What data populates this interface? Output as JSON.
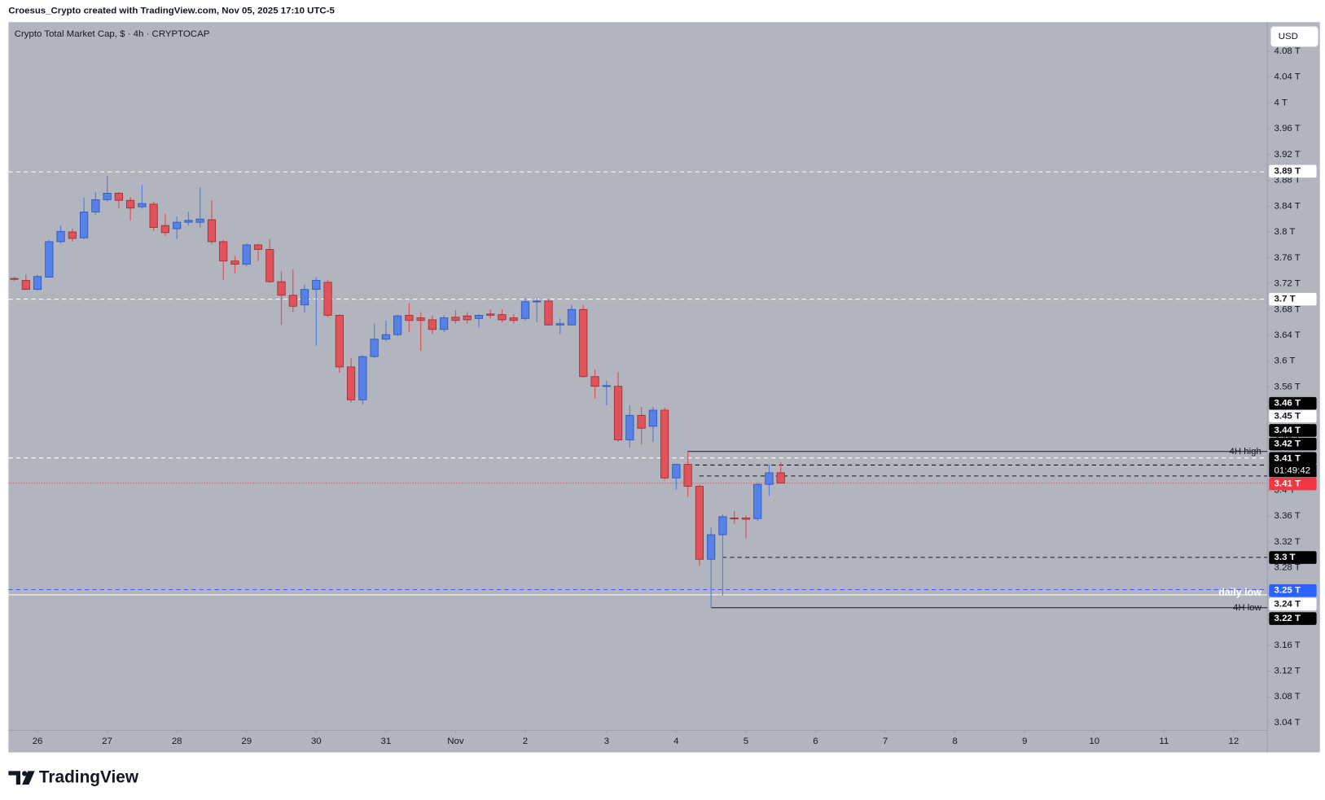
{
  "chart_data": {
    "type": "candlestick",
    "attribution": "Croesus_Crypto created with TradingView.com, Nov 05, 2025 17:10 UTC-5",
    "title": "Crypto Total Market Cap, $ · 4h · CRYPTOCAP",
    "currency": "USD",
    "brand": "TradingView",
    "up_color": "#5681e6",
    "down_color": "#e0535a",
    "grid": false,
    "open": [
      3.728,
      3.725,
      3.711,
      3.73,
      3.785,
      3.8,
      3.791,
      3.831,
      3.85,
      3.86,
      3.849,
      3.839,
      3.843,
      3.81,
      3.805,
      3.815,
      3.815,
      3.819,
      3.785,
      3.755,
      3.75,
      3.78,
      3.773,
      3.723,
      3.702,
      3.687,
      3.711,
      3.722,
      3.671,
      3.591,
      3.54,
      3.607,
      3.634,
      3.641,
      3.671,
      3.667,
      3.664,
      3.649,
      3.668,
      3.67,
      3.666,
      3.673,
      3.672,
      3.667,
      3.666,
      3.692,
      3.693,
      3.656,
      3.656,
      3.68,
      3.576,
      3.561,
      3.561,
      3.478,
      3.516,
      3.499,
      3.524,
      3.419,
      3.44,
      3.406,
      3.293,
      3.331,
      3.357,
      3.357,
      3.356,
      3.409,
      3.427
    ],
    "high": [
      3.731,
      3.734,
      3.733,
      3.788,
      3.81,
      3.805,
      3.853,
      3.862,
      3.887,
      3.862,
      3.854,
      3.873,
      3.847,
      3.828,
      3.824,
      3.831,
      3.869,
      3.849,
      3.788,
      3.763,
      3.782,
      3.782,
      3.789,
      3.739,
      3.742,
      3.718,
      3.73,
      3.726,
      3.673,
      3.605,
      3.609,
      3.658,
      3.663,
      3.672,
      3.69,
      3.676,
      3.671,
      3.671,
      3.679,
      3.676,
      3.673,
      3.68,
      3.68,
      3.673,
      3.697,
      3.697,
      3.696,
      3.666,
      3.687,
      3.687,
      3.587,
      3.57,
      3.583,
      3.532,
      3.529,
      3.529,
      3.528,
      3.441,
      3.46,
      3.409,
      3.342,
      3.363,
      3.368,
      3.361,
      3.411,
      3.44,
      3.443
    ],
    "low": [
      3.724,
      3.71,
      3.71,
      3.729,
      3.782,
      3.785,
      3.789,
      3.826,
      3.847,
      3.837,
      3.818,
      3.836,
      3.802,
      3.794,
      3.789,
      3.81,
      3.807,
      3.781,
      3.726,
      3.736,
      3.747,
      3.755,
      3.721,
      3.656,
      3.676,
      3.675,
      3.624,
      3.668,
      3.582,
      3.536,
      3.533,
      3.605,
      3.631,
      3.638,
      3.645,
      3.616,
      3.642,
      3.645,
      3.658,
      3.658,
      3.652,
      3.666,
      3.66,
      3.658,
      3.663,
      3.66,
      3.655,
      3.642,
      3.655,
      3.574,
      3.542,
      3.532,
      3.475,
      3.466,
      3.471,
      3.475,
      3.416,
      3.401,
      3.39,
      3.283,
      3.218,
      3.237,
      3.348,
      3.325,
      3.352,
      3.391,
      3.411
    ],
    "close": [
      3.727,
      3.711,
      3.731,
      3.785,
      3.801,
      3.79,
      3.831,
      3.85,
      3.86,
      3.849,
      3.837,
      3.844,
      3.807,
      3.799,
      3.815,
      3.818,
      3.82,
      3.785,
      3.755,
      3.75,
      3.78,
      3.773,
      3.723,
      3.702,
      3.685,
      3.711,
      3.725,
      3.671,
      3.591,
      3.54,
      3.607,
      3.634,
      3.641,
      3.67,
      3.663,
      3.663,
      3.649,
      3.667,
      3.663,
      3.664,
      3.671,
      3.671,
      3.664,
      3.663,
      3.692,
      3.693,
      3.656,
      3.658,
      3.68,
      3.576,
      3.561,
      3.562,
      3.478,
      3.516,
      3.496,
      3.524,
      3.419,
      3.44,
      3.406,
      3.293,
      3.331,
      3.359,
      3.356,
      3.355,
      3.409,
      3.427,
      3.411
    ],
    "xlim": [
      -0.5,
      107.9
    ],
    "xticks": [
      {
        "value": 2,
        "label": "26"
      },
      {
        "value": 8,
        "label": "27"
      },
      {
        "value": 14,
        "label": "28"
      },
      {
        "value": 20,
        "label": "29"
      },
      {
        "value": 26,
        "label": "30"
      },
      {
        "value": 32,
        "label": "31"
      },
      {
        "value": 38,
        "label": "Nov"
      },
      {
        "value": 44,
        "label": "2"
      },
      {
        "value": 51,
        "label": "3"
      },
      {
        "value": 57,
        "label": "4"
      },
      {
        "value": 63,
        "label": "5"
      },
      {
        "value": 69,
        "label": "6"
      },
      {
        "value": 75,
        "label": "7"
      },
      {
        "value": 81,
        "label": "8"
      },
      {
        "value": 87,
        "label": "9"
      },
      {
        "value": 93,
        "label": "10"
      },
      {
        "value": 99,
        "label": "11"
      },
      {
        "value": 105,
        "label": "12"
      }
    ],
    "ylim": [
      3.028,
      4.125
    ],
    "yticks": [
      {
        "value": 3.04,
        "label": "3.04 T"
      },
      {
        "value": 3.08,
        "label": "3.08 T"
      },
      {
        "value": 3.12,
        "label": "3.12 T"
      },
      {
        "value": 3.16,
        "label": "3.16 T"
      },
      {
        "value": 3.2,
        "label": "3.2 T"
      },
      {
        "value": 3.24,
        "label": "3.24 T"
      },
      {
        "value": 3.28,
        "label": "3.28 T"
      },
      {
        "value": 3.32,
        "label": "3.32 T"
      },
      {
        "value": 3.36,
        "label": "3.36 T"
      },
      {
        "value": 3.4,
        "label": "3.4 T"
      },
      {
        "value": 3.44,
        "label": "3.44 T"
      },
      {
        "value": 3.48,
        "label": "3.48 T"
      },
      {
        "value": 3.52,
        "label": "3.52 T"
      },
      {
        "value": 3.56,
        "label": "3.56 T"
      },
      {
        "value": 3.6,
        "label": "3.6 T"
      },
      {
        "value": 3.64,
        "label": "3.64 T"
      },
      {
        "value": 3.68,
        "label": "3.68 T"
      },
      {
        "value": 3.72,
        "label": "3.72 T"
      },
      {
        "value": 3.76,
        "label": "3.76 T"
      },
      {
        "value": 3.8,
        "label": "3.8 T"
      },
      {
        "value": 3.84,
        "label": "3.84 T"
      },
      {
        "value": 3.88,
        "label": "3.88 T"
      },
      {
        "value": 3.92,
        "label": "3.92 T"
      },
      {
        "value": 3.96,
        "label": "3.96 T"
      },
      {
        "value": 4,
        "label": "4 T"
      },
      {
        "value": 4.04,
        "label": "4.04 T"
      },
      {
        "value": 4.08,
        "label": "4.08 T"
      }
    ],
    "levels": [
      {
        "value": 3.893,
        "label": "3.89 T",
        "line": "dashed",
        "color": "#ffffff",
        "tag_color": "#ffffff",
        "text_color": "#131722"
      },
      {
        "value": 3.696,
        "label": "3.7 T",
        "line": "dashed",
        "color": "#ffffff",
        "tag_color": "#ffffff",
        "text_color": "#131722"
      },
      {
        "value": 3.46,
        "label": "3.46 T",
        "line": "solid",
        "color": "#131722",
        "tag_color": "#000000",
        "text_color": "#ffffff",
        "note": "4H high"
      },
      {
        "value": 3.45,
        "label": "3.45 T",
        "line": "dashed",
        "color": "#ffffff",
        "tag_color": "#ffffff",
        "text_color": "#131722"
      },
      {
        "value": 3.439,
        "label": "3.44 T",
        "line": "dashed",
        "color": "#131722",
        "tag_color": "#000000",
        "text_color": "#ffffff"
      },
      {
        "value": 3.422,
        "label": "3.42 T",
        "line": "dashed",
        "color": "#131722",
        "tag_color": "#000000",
        "text_color": "#ffffff"
      },
      {
        "value": 3.412,
        "label": "3.41 T",
        "line": "none",
        "color": "#131722",
        "tag_color": "#000000",
        "text_color": "#ffffff",
        "countdown": "01:49:42"
      },
      {
        "value": 3.411,
        "label": "3.41 T",
        "line": "dotted",
        "color": "#f23645",
        "tag_color": "#f23645",
        "text_color": "#ffffff"
      },
      {
        "value": 3.296,
        "label": "3.3 T",
        "line": "dashed",
        "color": "#131722",
        "tag_color": "#000000",
        "text_color": "#ffffff"
      },
      {
        "value": 3.246,
        "label": "3.25 T",
        "line": "dashed",
        "color": "#2962ff",
        "tag_color": "#2962ff",
        "text_color": "#ffffff",
        "note": "daily low"
      },
      {
        "value": 3.238,
        "label": "3.24 T",
        "line": "solid",
        "color": "#ffffff",
        "tag_color": "#ffffff",
        "text_color": "#131722"
      },
      {
        "value": 3.218,
        "label": "3.22 T",
        "line": "solid",
        "color": "#131722",
        "tag_color": "#000000",
        "text_color": "#ffffff",
        "note": "4H low"
      }
    ]
  }
}
